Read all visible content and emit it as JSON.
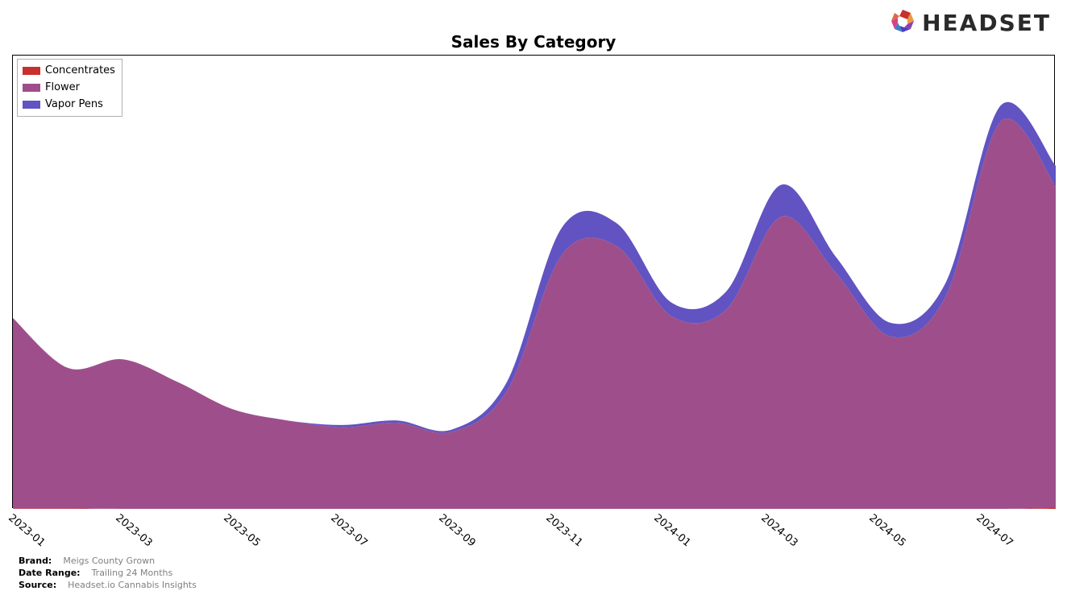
{
  "title": "Sales By Category",
  "brand_logo": {
    "text": "HEADSET"
  },
  "chart": {
    "type": "area",
    "background_color": "#ffffff",
    "border_color": "#000000",
    "title_fontsize": 20,
    "title_fontweight": "bold",
    "x_categories": [
      "2023-01",
      "2023-03",
      "2023-05",
      "2023-07",
      "2023-09",
      "2023-11",
      "2024-01",
      "2024-03",
      "2024-05",
      "2024-07"
    ],
    "xtick_fontsize": 13,
    "xtick_rotation_deg": 40,
    "y_axis_visible": false,
    "series": [
      {
        "name": "Concentrates",
        "color": "#c9302c",
        "values": [
          0.1,
          0.1,
          0.0,
          0.0,
          0.0,
          0.0,
          0.0,
          0.0,
          0.0,
          0.0,
          0.0,
          0.0,
          0.0,
          0.0,
          0.0,
          0.0,
          0.0,
          0.0,
          0.0,
          0.2
        ]
      },
      {
        "name": "Flower",
        "color": "#9e4f8b",
        "values": [
          42.0,
          31.0,
          33.0,
          28.0,
          22.0,
          19.5,
          18.0,
          19.0,
          17.0,
          26.0,
          56.0,
          58.0,
          42.5,
          44.0,
          64.5,
          52.0,
          38.0,
          47.0,
          85.5,
          71.0
        ]
      },
      {
        "name": "Vapor Pens",
        "color": "#6153c1",
        "values": [
          0.0,
          0.0,
          0.0,
          0.0,
          0.0,
          0.0,
          0.5,
          0.5,
          0.5,
          2.0,
          6.0,
          5.0,
          3.0,
          4.0,
          7.0,
          3.5,
          3.0,
          3.0,
          3.5,
          4.5
        ]
      }
    ],
    "ylim": [
      0,
      100
    ],
    "n_points": 20
  },
  "legend": {
    "border_color": "#b0b0b0",
    "fontsize": 13,
    "items": [
      {
        "label": "Concentrates",
        "color": "#c9302c"
      },
      {
        "label": "Flower",
        "color": "#9e4f8b"
      },
      {
        "label": "Vapor Pens",
        "color": "#6153c1"
      }
    ]
  },
  "footer": {
    "rows": [
      {
        "label": "Brand:",
        "value": "Meigs County Grown"
      },
      {
        "label": "Date Range:",
        "value": "Trailing 24 Months"
      },
      {
        "label": "Source:",
        "value": "Headset.io Cannabis Insights"
      }
    ],
    "label_fontsize": 11,
    "label_fontweight": "bold",
    "value_color": "#808080"
  }
}
